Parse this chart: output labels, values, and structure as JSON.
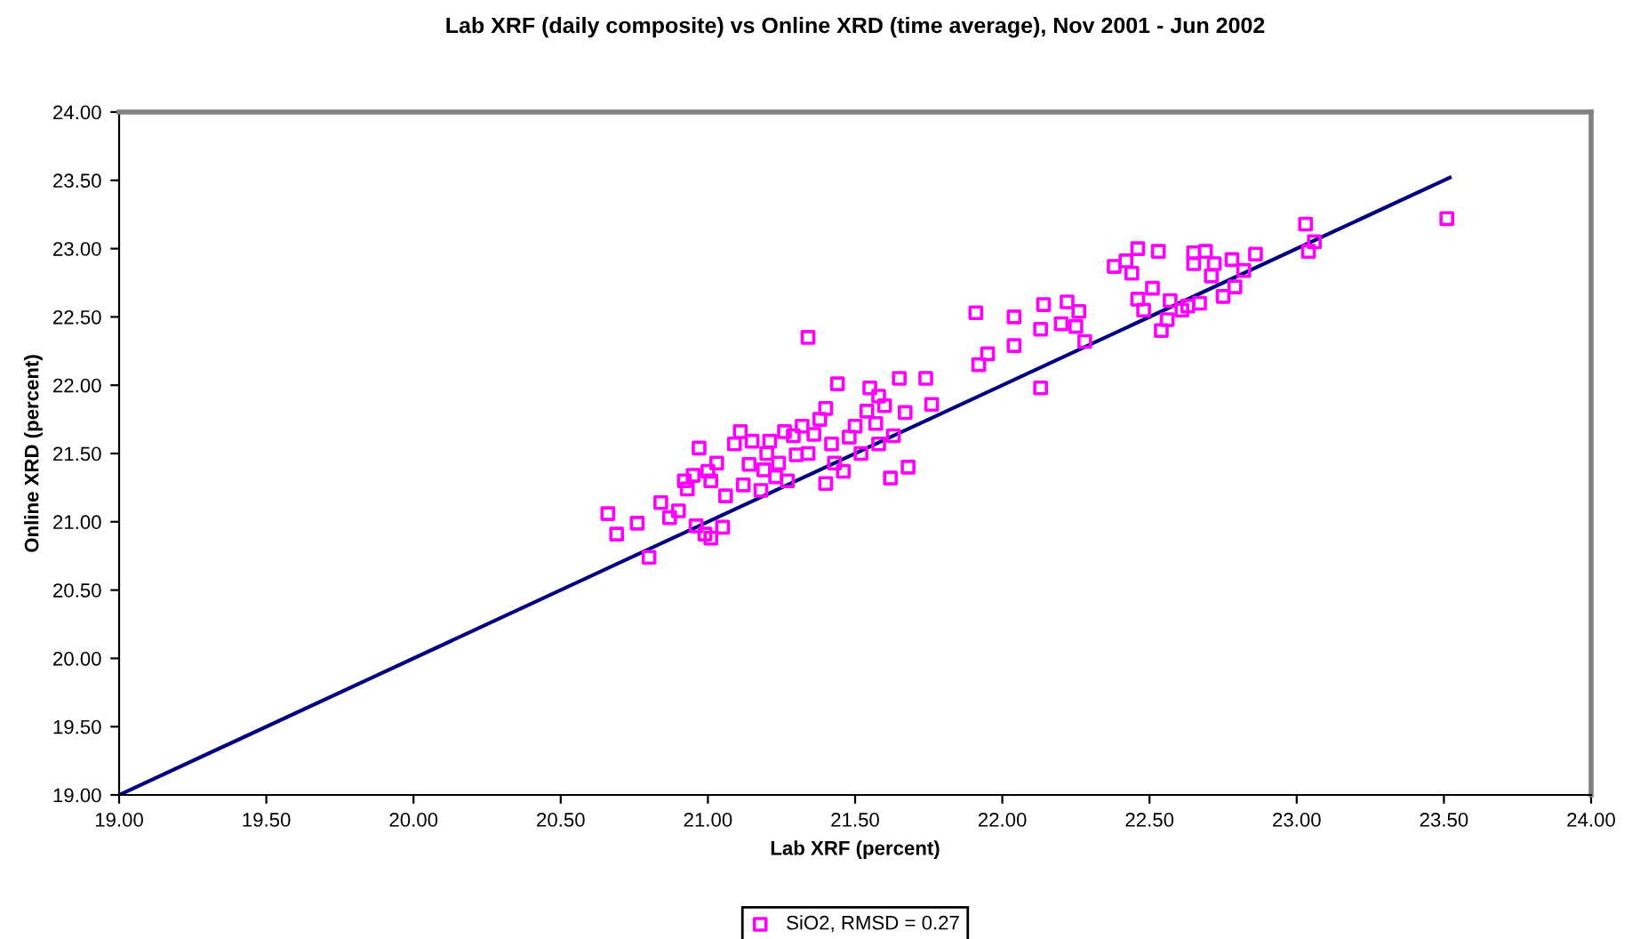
{
  "chart_data": {
    "type": "scatter",
    "title": "Lab XRF (daily composite) vs Online XRD (time average), Nov 2001 - Jun 2002",
    "xlabel": "Lab XRF (percent)",
    "ylabel": "Online XRD (percent)",
    "xlim": [
      19,
      24
    ],
    "ylim": [
      19,
      24
    ],
    "xticks": [
      {
        "value": 19,
        "label": "19.00"
      },
      {
        "value": 19.5,
        "label": "19.50"
      },
      {
        "value": 20,
        "label": "20.00"
      },
      {
        "value": 20.5,
        "label": "20.50"
      },
      {
        "value": 21,
        "label": "21.00"
      },
      {
        "value": 21.5,
        "label": "21.50"
      },
      {
        "value": 22,
        "label": "22.00"
      },
      {
        "value": 22.5,
        "label": "22.50"
      },
      {
        "value": 23,
        "label": "23.00"
      },
      {
        "value": 23.5,
        "label": "23.50"
      },
      {
        "value": 24,
        "label": "24.00"
      }
    ],
    "yticks": [
      {
        "value": 19,
        "label": "19.00"
      },
      {
        "value": 19.5,
        "label": "19.50"
      },
      {
        "value": 20,
        "label": "20.00"
      },
      {
        "value": 20.5,
        "label": "20.50"
      },
      {
        "value": 21,
        "label": "21.00"
      },
      {
        "value": 21.5,
        "label": "21.50"
      },
      {
        "value": 22,
        "label": "22.00"
      },
      {
        "value": 22.5,
        "label": "22.50"
      },
      {
        "value": 23,
        "label": "23.00"
      },
      {
        "value": 23.5,
        "label": "23.50"
      },
      {
        "value": 24,
        "label": "24.00"
      }
    ],
    "grid": false,
    "legend": "bottom",
    "marker": "square",
    "series": [
      {
        "type": "line",
        "color": "#000080",
        "marker": "none",
        "line_style": "solid",
        "x": [
          19,
          23.52
        ],
        "values": [
          19,
          23.52
        ]
      },
      {
        "name": "SiO2, RMSD = 0.27",
        "color": "#ff00ff",
        "x": [
          20.66,
          20.69,
          20.76,
          20.8,
          20.84,
          20.87,
          20.9,
          20.92,
          20.93,
          20.95,
          20.97,
          20.96,
          20.99,
          21.0,
          21.01,
          21.01,
          21.03,
          21.05,
          21.06,
          21.09,
          21.11,
          21.12,
          21.14,
          21.15,
          21.18,
          21.19,
          21.2,
          21.21,
          21.23,
          21.24,
          21.26,
          21.27,
          21.29,
          21.3,
          21.32,
          21.34,
          21.34,
          21.36,
          21.38,
          21.4,
          21.4,
          21.42,
          21.43,
          21.44,
          21.46,
          21.48,
          21.5,
          21.52,
          21.54,
          21.55,
          21.57,
          21.58,
          21.58,
          21.6,
          21.62,
          21.63,
          21.65,
          21.67,
          21.68,
          21.74,
          21.76,
          21.91,
          21.92,
          21.95,
          22.04,
          22.04,
          22.13,
          22.13,
          22.14,
          22.2,
          22.22,
          22.25,
          22.26,
          22.28,
          22.38,
          22.42,
          22.44,
          22.46,
          22.46,
          22.48,
          22.51,
          22.53,
          22.54,
          22.56,
          22.57,
          22.61,
          22.63,
          22.65,
          22.65,
          22.67,
          22.69,
          22.71,
          22.72,
          22.75,
          22.78,
          22.79,
          22.82,
          22.86,
          23.03,
          23.04,
          23.06,
          23.51
        ],
        "values": [
          21.06,
          20.91,
          20.99,
          20.74,
          21.14,
          21.03,
          21.08,
          21.3,
          21.24,
          21.34,
          21.54,
          20.97,
          20.91,
          21.37,
          21.3,
          20.88,
          21.43,
          20.96,
          21.19,
          21.57,
          21.66,
          21.27,
          21.42,
          21.59,
          21.23,
          21.38,
          21.5,
          21.59,
          21.33,
          21.43,
          21.66,
          21.3,
          21.63,
          21.49,
          21.7,
          22.35,
          21.5,
          21.64,
          21.75,
          21.28,
          21.83,
          21.57,
          21.43,
          22.01,
          21.37,
          21.62,
          21.7,
          21.5,
          21.81,
          21.98,
          21.72,
          21.92,
          21.57,
          21.85,
          21.32,
          21.63,
          22.05,
          21.8,
          21.4,
          22.05,
          21.86,
          22.53,
          22.15,
          22.23,
          22.5,
          22.29,
          21.98,
          22.41,
          22.59,
          22.45,
          22.61,
          22.43,
          22.54,
          22.32,
          22.87,
          22.91,
          22.82,
          23.0,
          22.63,
          22.55,
          22.71,
          22.98,
          22.4,
          22.48,
          22.62,
          22.55,
          22.58,
          22.97,
          22.89,
          22.6,
          22.98,
          22.8,
          22.89,
          22.65,
          22.92,
          22.72,
          22.84,
          22.96,
          23.18,
          22.98,
          23.05,
          23.22
        ]
      }
    ]
  }
}
